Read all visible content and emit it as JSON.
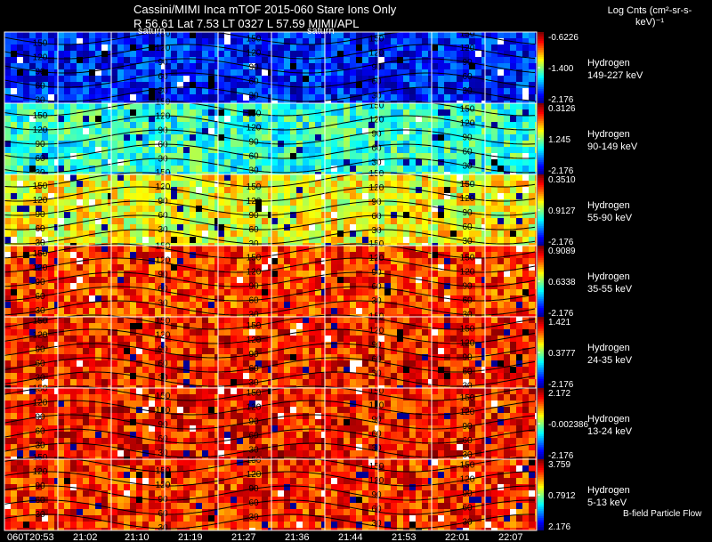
{
  "header": {
    "line1": "Cassini/MIMI Inca mTOF  2015-060    Stare    Ions Only",
    "line2": "R        56.61 Lat 7.53 LT 0327 L        57.59  MIMI/APL"
  },
  "units_label": "Log Cnts (cm²-sr-s-keV)⁻¹",
  "bfield_label": "B-field Particle Flow",
  "saturn_labels": [
    "saturn",
    "saturn"
  ],
  "colors": {
    "background": "#000000",
    "gridline": "#ffffff",
    "contour": "#000000"
  },
  "chart_data": {
    "type": "heatmap",
    "title": "Cassini/MIMI Inca mTOF 2015-060 Stare Ions Only",
    "x_ticks": [
      "060T20:53",
      "21:02",
      "21:10",
      "21:19",
      "21:27",
      "21:36",
      "21:44",
      "21:53",
      "22:01",
      "22:07"
    ],
    "contour_levels": [
      "30",
      "60",
      "90",
      "120",
      "150"
    ],
    "panels": [
      {
        "species": "Hydrogen",
        "energy": "149-227 keV",
        "cb_max": "-0.6226",
        "cb_mid": "-1.400",
        "cb_min": "-2.176",
        "level": 0.15
      },
      {
        "species": "Hydrogen",
        "energy": "90-149 keV",
        "cb_max": "0.3126",
        "cb_mid": "1.245",
        "cb_min": "-2.176",
        "level": 0.42
      },
      {
        "species": "Hydrogen",
        "energy": "55-90 keV",
        "cb_max": "0.3510",
        "cb_mid": "0.9127",
        "cb_min": "-2.176",
        "level": 0.62
      },
      {
        "species": "Hydrogen",
        "energy": "35-55 keV",
        "cb_max": "0.9089",
        "cb_mid": "0.6338",
        "cb_min": "-2.176",
        "level": 0.82
      },
      {
        "species": "Hydrogen",
        "energy": "24-35 keV",
        "cb_max": "1.421",
        "cb_mid": "0.3777",
        "cb_min": "-2.176",
        "level": 0.85
      },
      {
        "species": "Hydrogen",
        "energy": "13-24 keV",
        "cb_max": "2.172",
        "cb_mid": "-0.002386",
        "cb_min": "-2.176",
        "level": 0.86
      },
      {
        "species": "Hydrogen",
        "energy": "5-13 keV",
        "cb_max": "3.759",
        "cb_mid": "0.7912",
        "cb_min": "2.176",
        "level": 0.84
      }
    ]
  }
}
